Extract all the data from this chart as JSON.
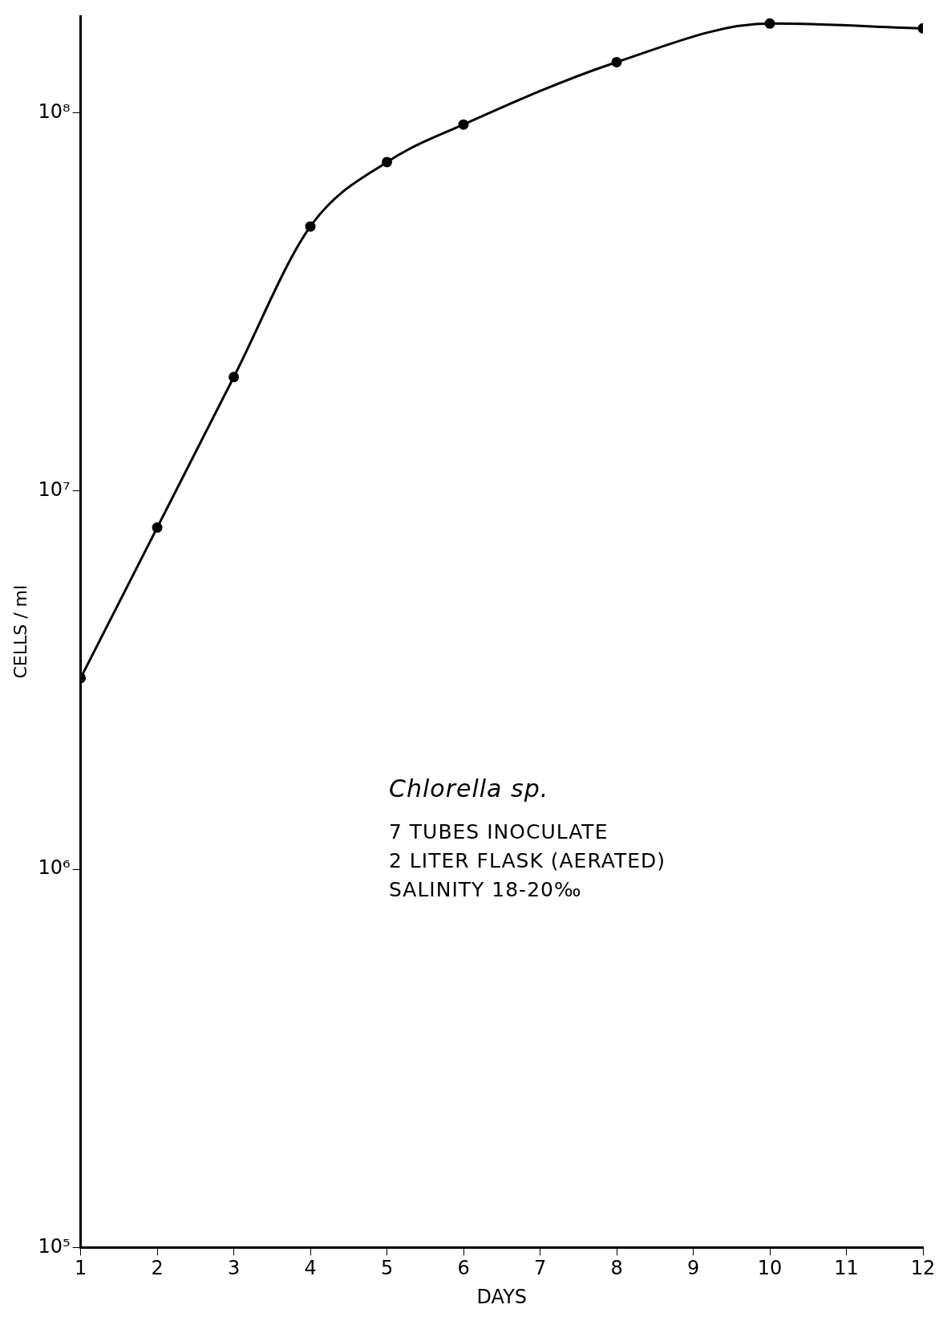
{
  "chart_data": {
    "type": "line",
    "xlabel": "DAYS",
    "ylabel": "CELLS / ml",
    "annotations": [
      "Chlorella sp.",
      "7 TUBES INOCULATE",
      "2 LITER FLASK (AERATED)",
      "SALINITY 18-20‰"
    ],
    "x": [
      1,
      2,
      3,
      4,
      5,
      6,
      8,
      10,
      12
    ],
    "series": [
      {
        "color": "#000000",
        "values": [
          3200000,
          8000000,
          20000000,
          50000000,
          74000000,
          93000000,
          136000000,
          172000000,
          167000000
        ]
      }
    ],
    "xlim": [
      1,
      12
    ],
    "xticks": [
      1,
      2,
      3,
      4,
      5,
      6,
      7,
      8,
      9,
      10,
      11,
      12
    ],
    "ylim": [
      100000,
      180000000
    ],
    "yticks": [
      {
        "value": 100000,
        "label": "10⁵"
      },
      {
        "value": 1000000,
        "label": "10⁶"
      },
      {
        "value": 10000000,
        "label": "10⁷"
      },
      {
        "value": 100000000,
        "label": "10⁸"
      }
    ],
    "log": "y",
    "grid": false,
    "legend": false,
    "marker": "circle",
    "line_style": "solid"
  }
}
